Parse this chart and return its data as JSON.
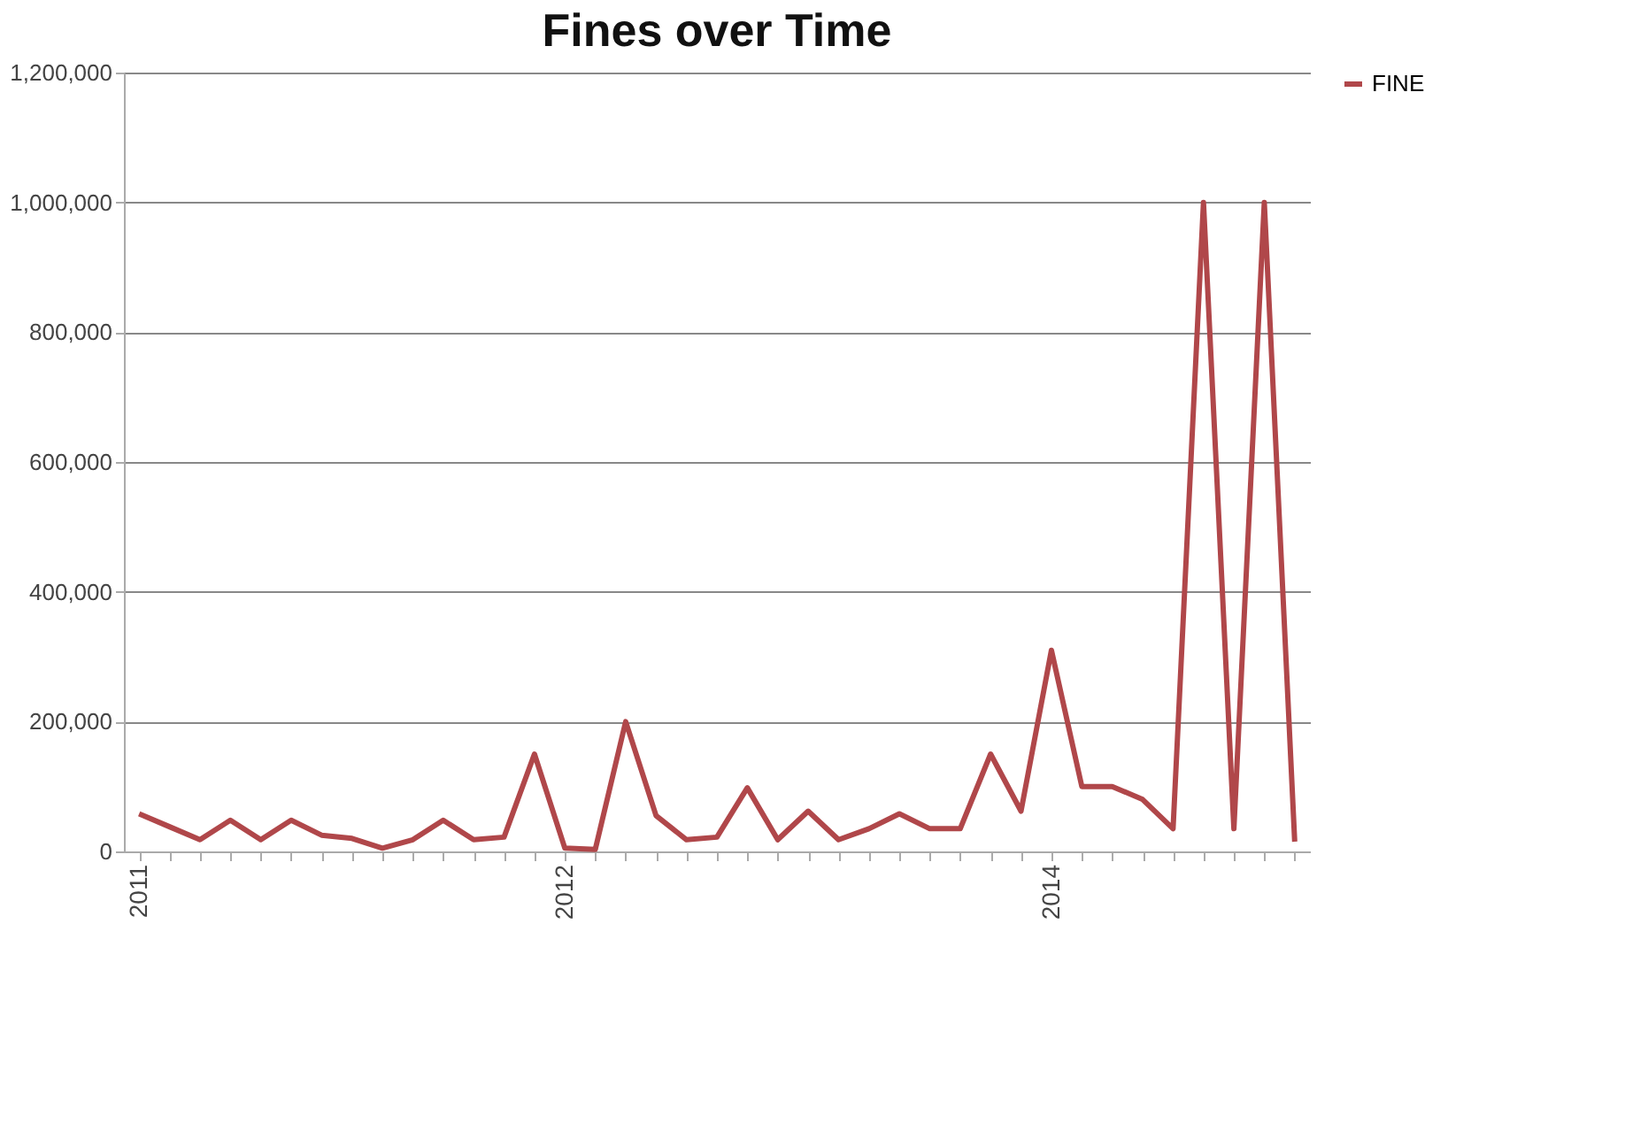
{
  "chart_data": {
    "type": "line",
    "title": "Fines over Time",
    "categories": [
      "2011",
      null,
      null,
      null,
      null,
      null,
      null,
      null,
      null,
      null,
      null,
      null,
      null,
      null,
      "2012",
      null,
      null,
      null,
      null,
      null,
      null,
      null,
      null,
      null,
      null,
      null,
      null,
      null,
      null,
      null,
      "2014",
      null,
      null,
      null,
      null,
      null,
      null,
      null,
      null
    ],
    "series": [
      {
        "name": "FINE",
        "color": "#b0474a",
        "values": [
          58000,
          38000,
          18000,
          48000,
          18000,
          48000,
          25000,
          20000,
          5000,
          18000,
          48000,
          18000,
          22000,
          150000,
          5000,
          3000,
          200000,
          55000,
          18000,
          22000,
          98000,
          18000,
          62000,
          18000,
          35000,
          58000,
          35000,
          35000,
          150000,
          62000,
          310000,
          100000,
          100000,
          80000,
          35000,
          1000000,
          35000,
          1000000,
          15000
        ]
      }
    ],
    "ylim": [
      0,
      1200000
    ],
    "yticks": [
      0,
      {
        "value": 200000,
        "label": "200,000"
      },
      {
        "value": 400000,
        "label": "400,000"
      },
      {
        "value": 600000,
        "label": "600,000"
      },
      {
        "value": 800000,
        "label": "800,000"
      },
      {
        "value": 1000000,
        "label": "1,000,000"
      },
      {
        "value": 1200000,
        "label": "1,200,000"
      }
    ],
    "grid": "y",
    "legend": "right",
    "marker": "none",
    "line_style": "solid"
  }
}
